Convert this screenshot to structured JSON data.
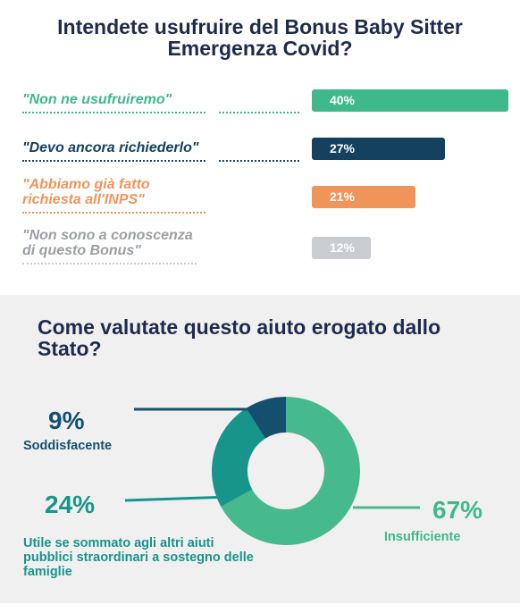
{
  "chart_data": [
    {
      "type": "bar",
      "title": "Intendete usufruire del Bonus Baby Sitter Emergenza Covid?",
      "categories": [
        "\"Non ne usufruiremo\"",
        "\"Devo ancora richiederlo\"",
        "\"Abbiamo già fatto richiesta all'INPS\"",
        "\"Non sono a conoscenza di questo Bonus\""
      ],
      "values": [
        40,
        27,
        21,
        12
      ],
      "value_labels": [
        "40%",
        "27%",
        "21%",
        "12%"
      ],
      "colors": [
        "#3fb98c",
        "#14415f",
        "#f0955a",
        "#c9ccd0"
      ],
      "orientation": "horizontal",
      "xlim": [
        0,
        40
      ]
    },
    {
      "type": "pie",
      "title": "Come valutate questo aiuto erogato dallo Stato?",
      "categories": [
        "Soddisfacente",
        "Utile se sommato agli altri aiuti pubblici straordinari a sostegno delle famiglie",
        "Insufficiente"
      ],
      "values": [
        9,
        24,
        67
      ],
      "value_labels": [
        "9%",
        "24%",
        "67%"
      ],
      "colors": [
        "#14506e",
        "#17958a",
        "#46b98d"
      ],
      "donut": true
    }
  ],
  "colors": {
    "title": "#1f2b4d",
    "bottom_bg": "#f1f0f0"
  }
}
